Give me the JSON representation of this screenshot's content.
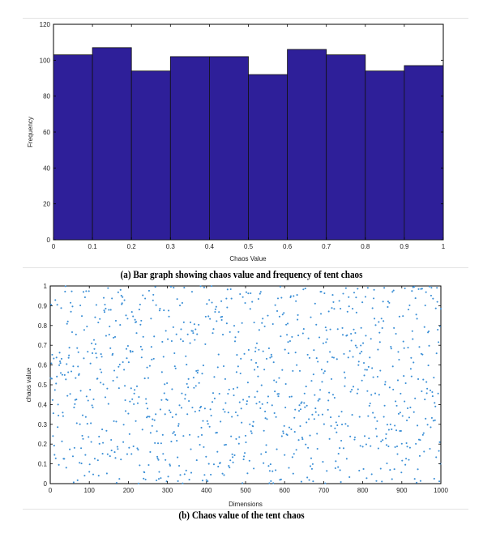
{
  "colors": {
    "bar_fill": "#2e1f99",
    "bar_stroke": "#111111",
    "point": "#3b8fd6",
    "axis": "#000000"
  },
  "captions": {
    "a": "(a) Bar graph showing chaos value and frequency of tent chaos",
    "b": "(b) Chaos value of the tent chaos"
  },
  "chart_data": [
    {
      "type": "bar",
      "title": "",
      "xlabel": "Chaos Value",
      "ylabel": "Frequency",
      "xlim": [
        0,
        1
      ],
      "ylim": [
        0,
        120
      ],
      "xticks": [
        0,
        0.1,
        0.2,
        0.3,
        0.4,
        0.5,
        0.6,
        0.7,
        0.8,
        0.9,
        1
      ],
      "xtick_labels": [
        "0",
        "0.1",
        "0.2",
        "0.3",
        "0.4",
        "0.5",
        "0.6",
        "0.7",
        "0.8",
        "0.9",
        "1"
      ],
      "yticks": [
        0,
        20,
        40,
        60,
        80,
        100,
        120
      ],
      "ytick_labels": [
        "0",
        "20",
        "40",
        "60",
        "80",
        "100",
        "120"
      ],
      "bin_edges": [
        0,
        0.1,
        0.2,
        0.3,
        0.4,
        0.5,
        0.6,
        0.7,
        0.8,
        0.9,
        1
      ],
      "values": [
        103,
        107,
        94,
        102,
        102,
        92,
        106,
        103,
        94,
        97
      ],
      "grid": false
    },
    {
      "type": "scatter",
      "title": "",
      "xlabel": "Dimensions",
      "ylabel": "chaos value",
      "xlim": [
        0,
        1000
      ],
      "ylim": [
        0,
        1
      ],
      "xticks": [
        0,
        100,
        200,
        300,
        400,
        500,
        600,
        700,
        800,
        900,
        1000
      ],
      "xtick_labels": [
        "0",
        "100",
        "200",
        "300",
        "400",
        "500",
        "600",
        "700",
        "800",
        "900",
        "1000"
      ],
      "yticks": [
        0,
        0.1,
        0.2,
        0.3,
        0.4,
        0.5,
        0.6,
        0.7,
        0.8,
        0.9,
        1
      ],
      "ytick_labels": [
        "0",
        "0.1",
        "0.2",
        "0.3",
        "0.4",
        "0.5",
        "0.6",
        "0.7",
        "0.8",
        "0.9",
        "1"
      ],
      "grid": false,
      "point_count": 1000,
      "distribution": "uniform 0-1",
      "sample_points": [
        [
          5,
          0.93
        ],
        [
          12,
          0.62
        ],
        [
          20,
          0.15
        ],
        [
          35,
          0.48
        ],
        [
          52,
          0.81
        ],
        [
          70,
          0.27
        ],
        [
          95,
          0.55
        ],
        [
          130,
          0.08
        ],
        [
          160,
          0.72
        ],
        [
          210,
          0.36
        ],
        [
          260,
          0.9
        ],
        [
          300,
          0.21
        ],
        [
          350,
          0.65
        ],
        [
          400,
          0.44
        ],
        [
          450,
          0.12
        ],
        [
          500,
          0.78
        ],
        [
          560,
          0.3
        ],
        [
          610,
          0.96
        ],
        [
          670,
          0.52
        ],
        [
          720,
          0.06
        ],
        [
          780,
          0.69
        ],
        [
          840,
          0.39
        ],
        [
          890,
          0.17
        ],
        [
          940,
          0.84
        ],
        [
          985,
          0.58
        ]
      ]
    }
  ]
}
